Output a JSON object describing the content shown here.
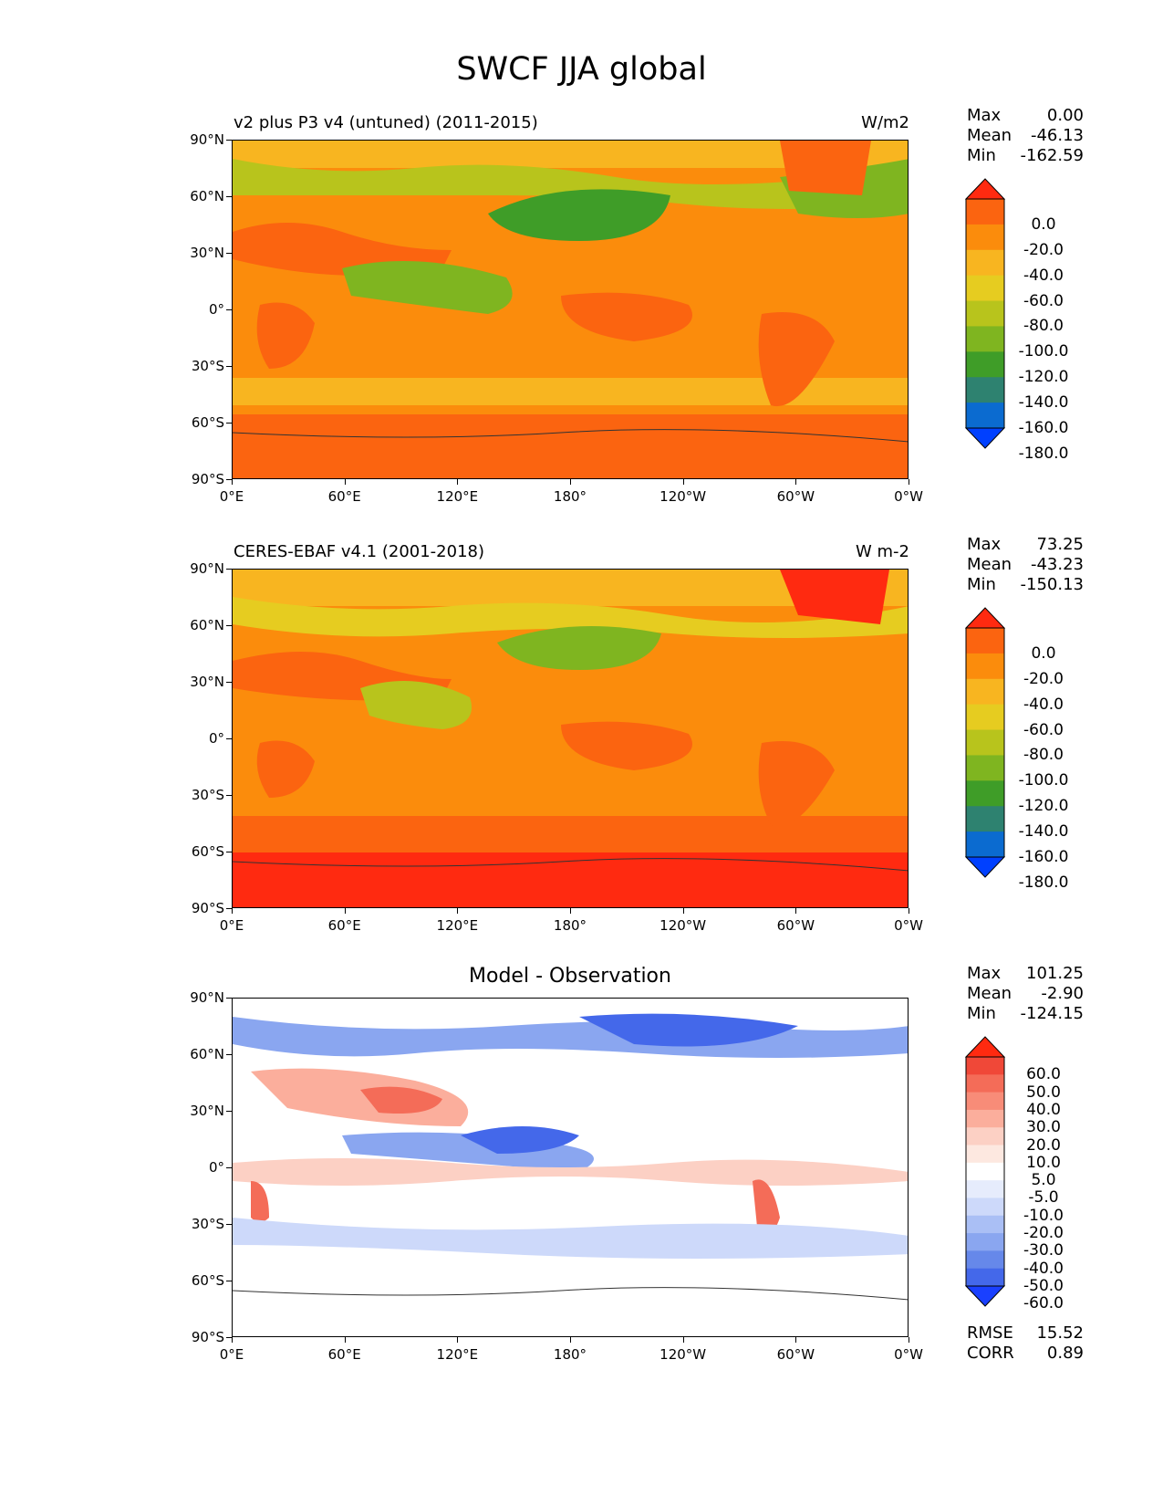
{
  "title": "SWCF JJA global",
  "y_ticks": [
    "90°N",
    "60°N",
    "30°N",
    "0°",
    "30°S",
    "60°S",
    "90°S"
  ],
  "x_ticks": [
    "0°E",
    "60°E",
    "120°E",
    "180°",
    "120°W",
    "60°W",
    "0°W"
  ],
  "panels": [
    {
      "title_left": "v2 plus P3 v4 (untuned) (2011-2015)",
      "title_right": "W/m2",
      "title_center": "",
      "stats": [
        {
          "k": "Max",
          "v": "0.00"
        },
        {
          "k": "Mean",
          "v": "-46.13"
        },
        {
          "k": "Min",
          "v": "-162.59"
        }
      ],
      "colorbar": {
        "labels": [
          "0.0",
          "-20.0",
          "-40.0",
          "-60.0",
          "-80.0",
          "-100.0",
          "-120.0",
          "-140.0",
          "-160.0",
          "-180.0"
        ],
        "colors": [
          "#ff2a10",
          "#fb6410",
          "#fb8c0c",
          "#f8b520",
          "#e6cc20",
          "#b8c41c",
          "#7fb520",
          "#3f9d28",
          "#2e8270",
          "#0b6bd0",
          "#0040ff"
        ]
      },
      "extra": []
    },
    {
      "title_left": "CERES-EBAF v4.1 (2001-2018)",
      "title_right": "W m-2",
      "title_center": "",
      "stats": [
        {
          "k": "Max",
          "v": "73.25"
        },
        {
          "k": "Mean",
          "v": "-43.23"
        },
        {
          "k": "Min",
          "v": "-150.13"
        }
      ],
      "colorbar": {
        "labels": [
          "0.0",
          "-20.0",
          "-40.0",
          "-60.0",
          "-80.0",
          "-100.0",
          "-120.0",
          "-140.0",
          "-160.0",
          "-180.0"
        ],
        "colors": [
          "#ff2a10",
          "#fb6410",
          "#fb8c0c",
          "#f8b520",
          "#e6cc20",
          "#b8c41c",
          "#7fb520",
          "#3f9d28",
          "#2e8270",
          "#0b6bd0",
          "#0040ff"
        ]
      },
      "extra": []
    },
    {
      "title_left": "",
      "title_right": "",
      "title_center": "Model - Observation",
      "stats": [
        {
          "k": "Max",
          "v": "101.25"
        },
        {
          "k": "Mean",
          "v": "-2.90"
        },
        {
          "k": "Min",
          "v": "-124.15"
        }
      ],
      "colorbar": {
        "labels": [
          "60.0",
          "50.0",
          "40.0",
          "30.0",
          "20.0",
          "10.0",
          "5.0",
          "-5.0",
          "-10.0",
          "-20.0",
          "-30.0",
          "-40.0",
          "-50.0",
          "-60.0"
        ],
        "colors": [
          "#ff2a10",
          "#f04838",
          "#f46c58",
          "#f88c78",
          "#fbae9c",
          "#fcd0c4",
          "#fde8e0",
          "#ffffff",
          "#e6ecfc",
          "#cdd9fa",
          "#aabff5",
          "#8aa6f0",
          "#6688ea",
          "#4468ea",
          "#1a40ff"
        ]
      },
      "extra": [
        {
          "k": "RMSE",
          "v": "15.52"
        },
        {
          "k": "CORR",
          "v": "0.89"
        }
      ]
    }
  ]
}
